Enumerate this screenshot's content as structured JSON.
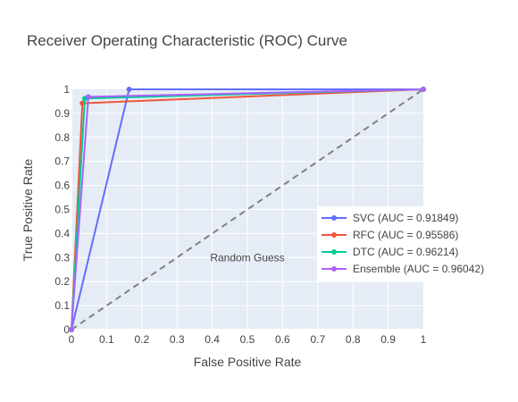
{
  "chart_data": {
    "type": "line",
    "title": "Receiver Operating Characteristic (ROC) Curve",
    "xlabel": "False Positive Rate",
    "ylabel": "True Positive Rate",
    "xlim": [
      0,
      1
    ],
    "ylim": [
      0,
      1
    ],
    "x_ticks": [
      "0",
      "0.1",
      "0.2",
      "0.3",
      "0.4",
      "0.5",
      "0.6",
      "0.7",
      "0.8",
      "0.9",
      "1"
    ],
    "y_ticks": [
      "0",
      "0.1",
      "0.2",
      "0.3",
      "0.4",
      "0.5",
      "0.6",
      "0.7",
      "0.8",
      "0.9",
      "1"
    ],
    "grid": true,
    "legend_position": "right",
    "series": [
      {
        "name": "SVC (AUC = 0.91849)",
        "color": "#636efa",
        "x": [
          0,
          0.164,
          1
        ],
        "y": [
          0,
          1,
          1
        ]
      },
      {
        "name": "RFC (AUC = 0.95586)",
        "color": "#ef553b",
        "x": [
          0,
          0.031,
          1
        ],
        "y": [
          0,
          0.942,
          1
        ]
      },
      {
        "name": "DTC (AUC = 0.96214)",
        "color": "#00cc96",
        "x": [
          0,
          0.038,
          1
        ],
        "y": [
          0,
          0.962,
          1
        ]
      },
      {
        "name": "Ensemble (AUC = 0.96042)",
        "color": "#ab63fa",
        "x": [
          0,
          0.048,
          1
        ],
        "y": [
          0,
          0.969,
          1
        ]
      }
    ],
    "reference_line": {
      "x": [
        0,
        1
      ],
      "y": [
        0,
        1
      ],
      "color": "#808080",
      "dash": true
    },
    "annotation": {
      "text": "Random Guess",
      "x": 0.5,
      "y": 0.3
    }
  }
}
